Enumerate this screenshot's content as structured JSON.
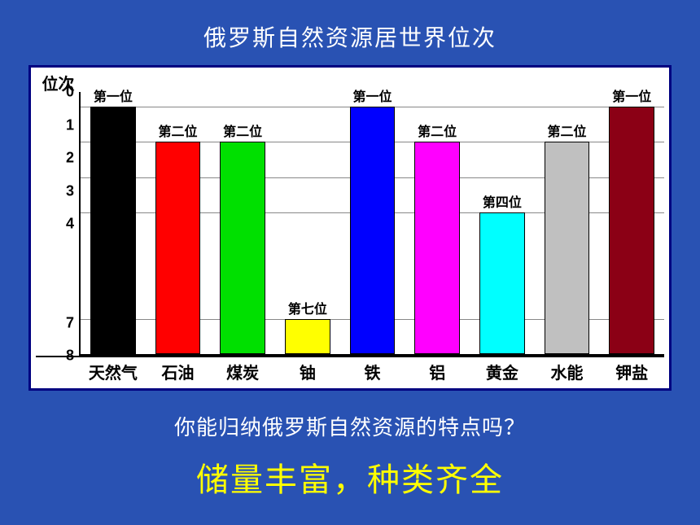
{
  "slide": {
    "background_color": "#2952b3",
    "title": "俄罗斯自然资源居世界位次",
    "title_color": "#ffffff",
    "title_fontsize": 28,
    "question": "你能归纳俄罗斯自然资源的特点吗？",
    "question_color": "#ffffff",
    "question_fontsize": 26,
    "answer": "储量丰富，种类齐全",
    "answer_color": "#ffff00",
    "answer_fontsize": 40
  },
  "chart": {
    "type": "bar",
    "background_color": "#ffffff",
    "border_color": "#000080",
    "yaxis": {
      "title": "位次",
      "min": 0,
      "max": 8,
      "ticks": [
        0,
        1,
        2,
        3,
        4,
        7,
        8
      ],
      "inverted": true,
      "grid_color": "#888888",
      "tick_fontsize": 18,
      "title_fontsize": 20
    },
    "xaxis": {
      "label_fontsize": 20,
      "label_fontweight": "bold"
    },
    "bar_width_ratio": 0.7,
    "bar_label_fontsize": 16,
    "bars": [
      {
        "category": "天然气",
        "value": 1,
        "label": "第一位",
        "color": "#000000"
      },
      {
        "category": "石油",
        "value": 2,
        "label": "第二位",
        "color": "#ff0000"
      },
      {
        "category": "煤炭",
        "value": 2,
        "label": "第二位",
        "color": "#00e000"
      },
      {
        "category": "铀",
        "value": 7,
        "label": "第七位",
        "color": "#ffff00"
      },
      {
        "category": "铁",
        "value": 1,
        "label": "第一位",
        "color": "#0000ff"
      },
      {
        "category": "铝",
        "value": 2,
        "label": "第二位",
        "color": "#ff00ff"
      },
      {
        "category": "黄金",
        "value": 4,
        "label": "第四位",
        "color": "#00ffff"
      },
      {
        "category": "水能",
        "value": 2,
        "label": "第二位",
        "color": "#c0c0c0"
      },
      {
        "category": "钾盐",
        "value": 1,
        "label": "第一位",
        "color": "#8b0015"
      }
    ]
  }
}
